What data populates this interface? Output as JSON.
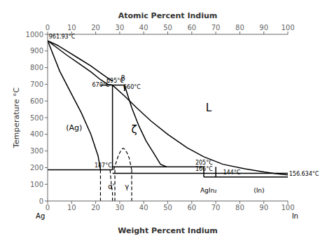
{
  "chart_data": {
    "type": "line",
    "x2label": "Atomic Percent Indium",
    "xlabel": "Weight Percent Indium",
    "ylabel": "Temperature °C",
    "xlim": [
      0,
      100
    ],
    "ylim": [
      0,
      1000
    ],
    "xticks": [
      0,
      10,
      20,
      30,
      40,
      50,
      60,
      70,
      80,
      90,
      100
    ],
    "yticks": [
      0,
      100,
      200,
      300,
      400,
      500,
      600,
      700,
      800,
      900,
      1000
    ],
    "x2lim": [
      0,
      100
    ],
    "x2ticks": [
      0,
      10,
      20,
      30,
      40,
      50,
      60,
      70,
      80,
      90,
      100
    ],
    "grid": false,
    "series": [
      {
        "color": "#000000",
        "line_style": "solid",
        "x": [
          0,
          4,
          8,
          13,
          18,
          22,
          25,
          27
        ],
        "values": [
          961.93,
          935,
          900,
          855,
          810,
          768,
          738,
          720
        ]
      },
      {
        "color": "#000000",
        "line_style": "solid",
        "x": [
          0,
          4,
          8,
          13,
          18,
          22,
          25,
          27
        ],
        "values": [
          961.93,
          918,
          875,
          825,
          775,
          728,
          700,
          695
        ]
      },
      {
        "color": "#000000",
        "line_style": "solid",
        "x": [
          27,
          32,
          37,
          43,
          50,
          58,
          65,
          73,
          82,
          90,
          95,
          100
        ],
        "values": [
          695,
          630,
          560,
          480,
          400,
          320,
          265,
          220,
          193,
          174,
          164,
          156.634
        ]
      },
      {
        "color": "#000000",
        "line_style": "solid",
        "x": [
          0,
          5,
          10,
          14,
          18,
          21,
          22
        ],
        "values": [
          961.93,
          780,
          640,
          530,
          400,
          270,
          187
        ]
      },
      {
        "color": "#000000",
        "line_style": "solid",
        "x": [
          27,
          27
        ],
        "values": [
          695,
          187
        ]
      },
      {
        "color": "#000000",
        "line_style": "solid",
        "x": [
          32,
          33,
          35,
          38,
          41,
          44,
          47,
          49.5
        ],
        "values": [
          695,
          650,
          560,
          450,
          360,
          290,
          220,
          205
        ]
      },
      {
        "color": "#000000",
        "line_style": "solid",
        "x": [
          22,
          32
        ],
        "values": [
          695,
          695
        ]
      },
      {
        "color": "#000000",
        "line_style": "solid",
        "x": [
          32,
          32
        ],
        "values": [
          695,
          660
        ]
      },
      {
        "color": "#000000",
        "line_style": "solid",
        "x": [
          27,
          65
        ],
        "values": [
          205,
          205
        ]
      },
      {
        "color": "#000000",
        "line_style": "solid",
        "x": [
          27,
          100
        ],
        "values": [
          166,
          166
        ]
      },
      {
        "color": "#000000",
        "line_style": "solid",
        "x": [
          0,
          27
        ],
        "values": [
          187,
          187
        ]
      },
      {
        "color": "#000000",
        "line_style": "solid",
        "x": [
          65,
          100
        ],
        "values": [
          144,
          144
        ]
      },
      {
        "color": "#000000",
        "line_style": "solid",
        "x": [
          65,
          65
        ],
        "values": [
          205,
          144
        ]
      },
      {
        "color": "#000000",
        "line_style": "solid",
        "x": [
          70,
          70
        ],
        "values": [
          205,
          144
        ]
      },
      {
        "color": "#000000",
        "line_style": "dashed",
        "x": [
          27.5,
          28.5,
          29.5,
          30.5,
          31.2,
          31.5,
          32,
          32.5,
          33.2,
          34,
          34.5,
          35
        ],
        "values": [
          187,
          230,
          275,
          302,
          315,
          316,
          312,
          302,
          285,
          255,
          220,
          187
        ]
      },
      {
        "color": "#000000",
        "line_style": "dashed",
        "x": [
          22,
          22
        ],
        "values": [
          187,
          0
        ]
      },
      {
        "color": "#000000",
        "line_style": "dashed",
        "x": [
          26,
          26.5,
          27,
          27
        ],
        "values": [
          187,
          100,
          50,
          0
        ]
      },
      {
        "color": "#000000",
        "line_style": "dashed",
        "x": [
          28,
          28
        ],
        "values": [
          187,
          0
        ]
      },
      {
        "color": "#000000",
        "line_style": "dashed",
        "x": [
          35,
          35
        ],
        "values": [
          187,
          0
        ]
      }
    ],
    "annotations": [
      {
        "text": "Ag",
        "x": -3,
        "y": -105
      },
      {
        "text": "In",
        "x": 103,
        "y": -105
      },
      {
        "text": "961.93°C",
        "x": 0.5,
        "y": 968
      },
      {
        "text": "695°C",
        "x": 24.5,
        "y": 702
      },
      {
        "text": "670°C",
        "x": 18.5,
        "y": 677
      },
      {
        "text": "β",
        "x": 30.5,
        "y": 713
      },
      {
        "text": "660°C",
        "x": 31.5,
        "y": 664
      },
      {
        "text": "187°C",
        "x": 19.5,
        "y": 192
      },
      {
        "text": "205°C",
        "x": 61.5,
        "y": 212
      },
      {
        "text": "166°C",
        "x": 61.5,
        "y": 173
      },
      {
        "text": "144°C",
        "x": 73,
        "y": 151
      },
      {
        "text": "156.634°C",
        "x": 100.5,
        "y": 163
      },
      {
        "text": "L",
        "x": 67,
        "y": 560
      },
      {
        "text": "(Ag)",
        "x": 11,
        "y": 440
      },
      {
        "text": "ζ",
        "x": 36,
        "y": 430
      },
      {
        "text": "α'",
        "x": 26.5,
        "y": 85
      },
      {
        "text": "γ",
        "x": 33,
        "y": 85
      },
      {
        "text": "AgIn₂",
        "x": 67,
        "y": 65
      },
      {
        "text": "(In)",
        "x": 88,
        "y": 65
      }
    ]
  }
}
